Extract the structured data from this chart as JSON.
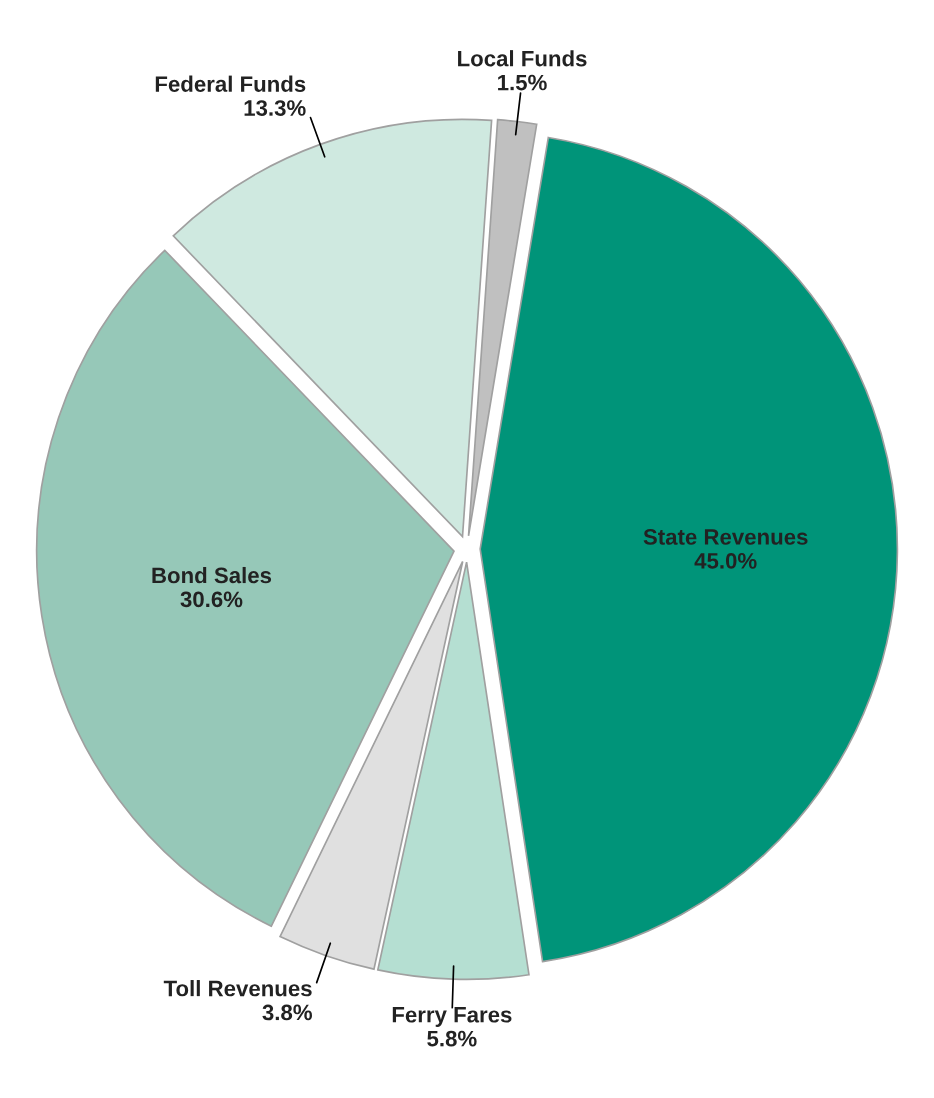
{
  "chart_data": {
    "type": "pie",
    "categories": [
      "Local Funds",
      "State Revenues",
      "Ferry Fares",
      "Toll Revenues",
      "Bond Sales",
      "Federal Funds"
    ],
    "values": [
      1.5,
      45.0,
      5.8,
      3.8,
      30.6,
      13.3
    ],
    "colors": [
      "#c0c0c0",
      "#009479",
      "#b5dfd2",
      "#e0e0e0",
      "#96c8b8",
      "#cfe9e0"
    ],
    "value_labels": [
      "1.5%",
      "45.0%",
      "5.8%",
      "3.8%",
      "30.6%",
      "13.3%"
    ]
  }
}
